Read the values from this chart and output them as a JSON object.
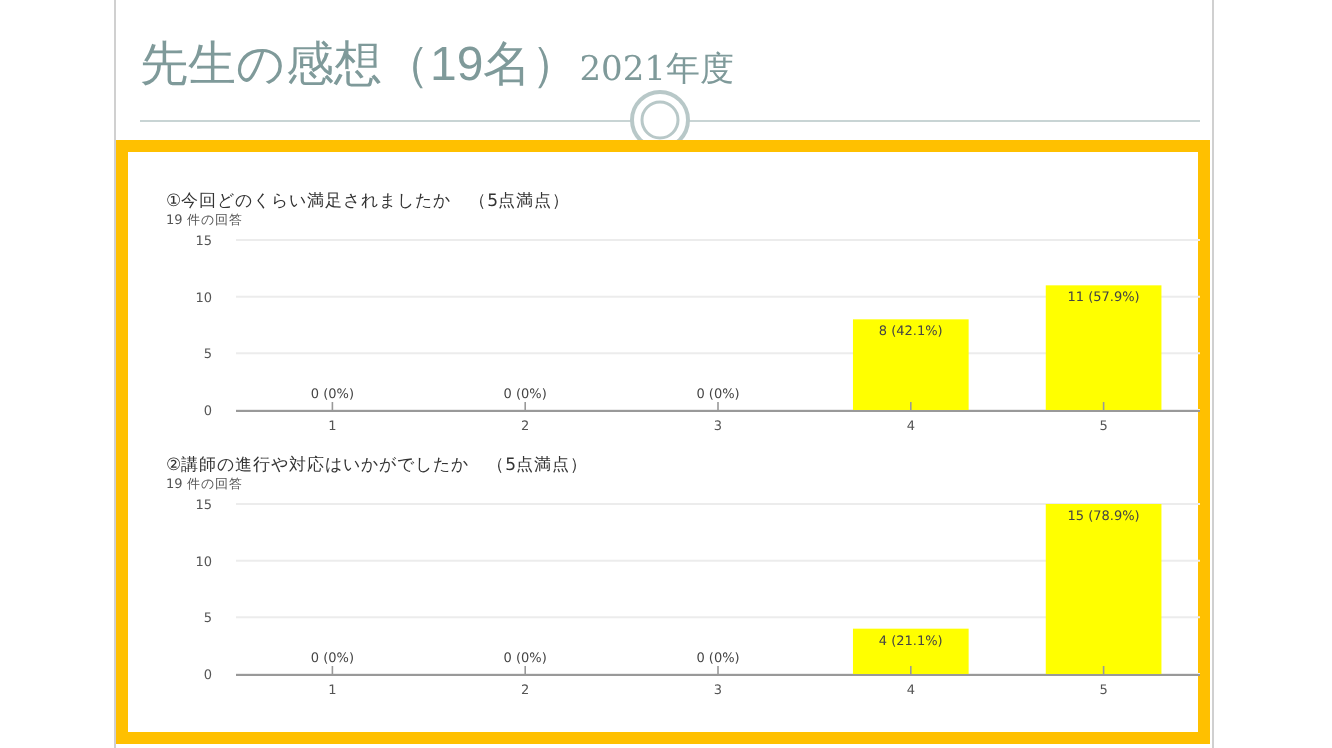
{
  "chart_data": [
    {
      "type": "bar",
      "title": "①今回どのくらい満足されましたか　（5点満点）",
      "subtitle": "19 件の回答",
      "annotations": [
        "先生の感想（19名）",
        "2021年度"
      ],
      "categories": [
        "1",
        "2",
        "3",
        "4",
        "5"
      ],
      "values": [
        0,
        0,
        0,
        8,
        11
      ],
      "value_labels": [
        "0 (0%)",
        "0 (0%)",
        "0 (0%)",
        "8 (42.1%)",
        "11 (57.9%)"
      ],
      "color": "#ffff00",
      "ylim": [
        0,
        15
      ],
      "yticks": [
        0,
        5,
        10,
        15
      ],
      "grid": "y"
    },
    {
      "type": "bar",
      "title": "②講師の進行や対応はいかがでしたか　（5点満点）",
      "subtitle": "19 件の回答",
      "categories": [
        "1",
        "2",
        "3",
        "4",
        "5"
      ],
      "values": [
        0,
        0,
        0,
        4,
        15
      ],
      "value_labels": [
        "0 (0%)",
        "0 (0%)",
        "0 (0%)",
        "4 (21.1%)",
        "15 (78.9%)"
      ],
      "color": "#ffff00",
      "ylim": [
        0,
        15
      ],
      "yticks": [
        0,
        5,
        10,
        15
      ],
      "grid": "y"
    }
  ]
}
